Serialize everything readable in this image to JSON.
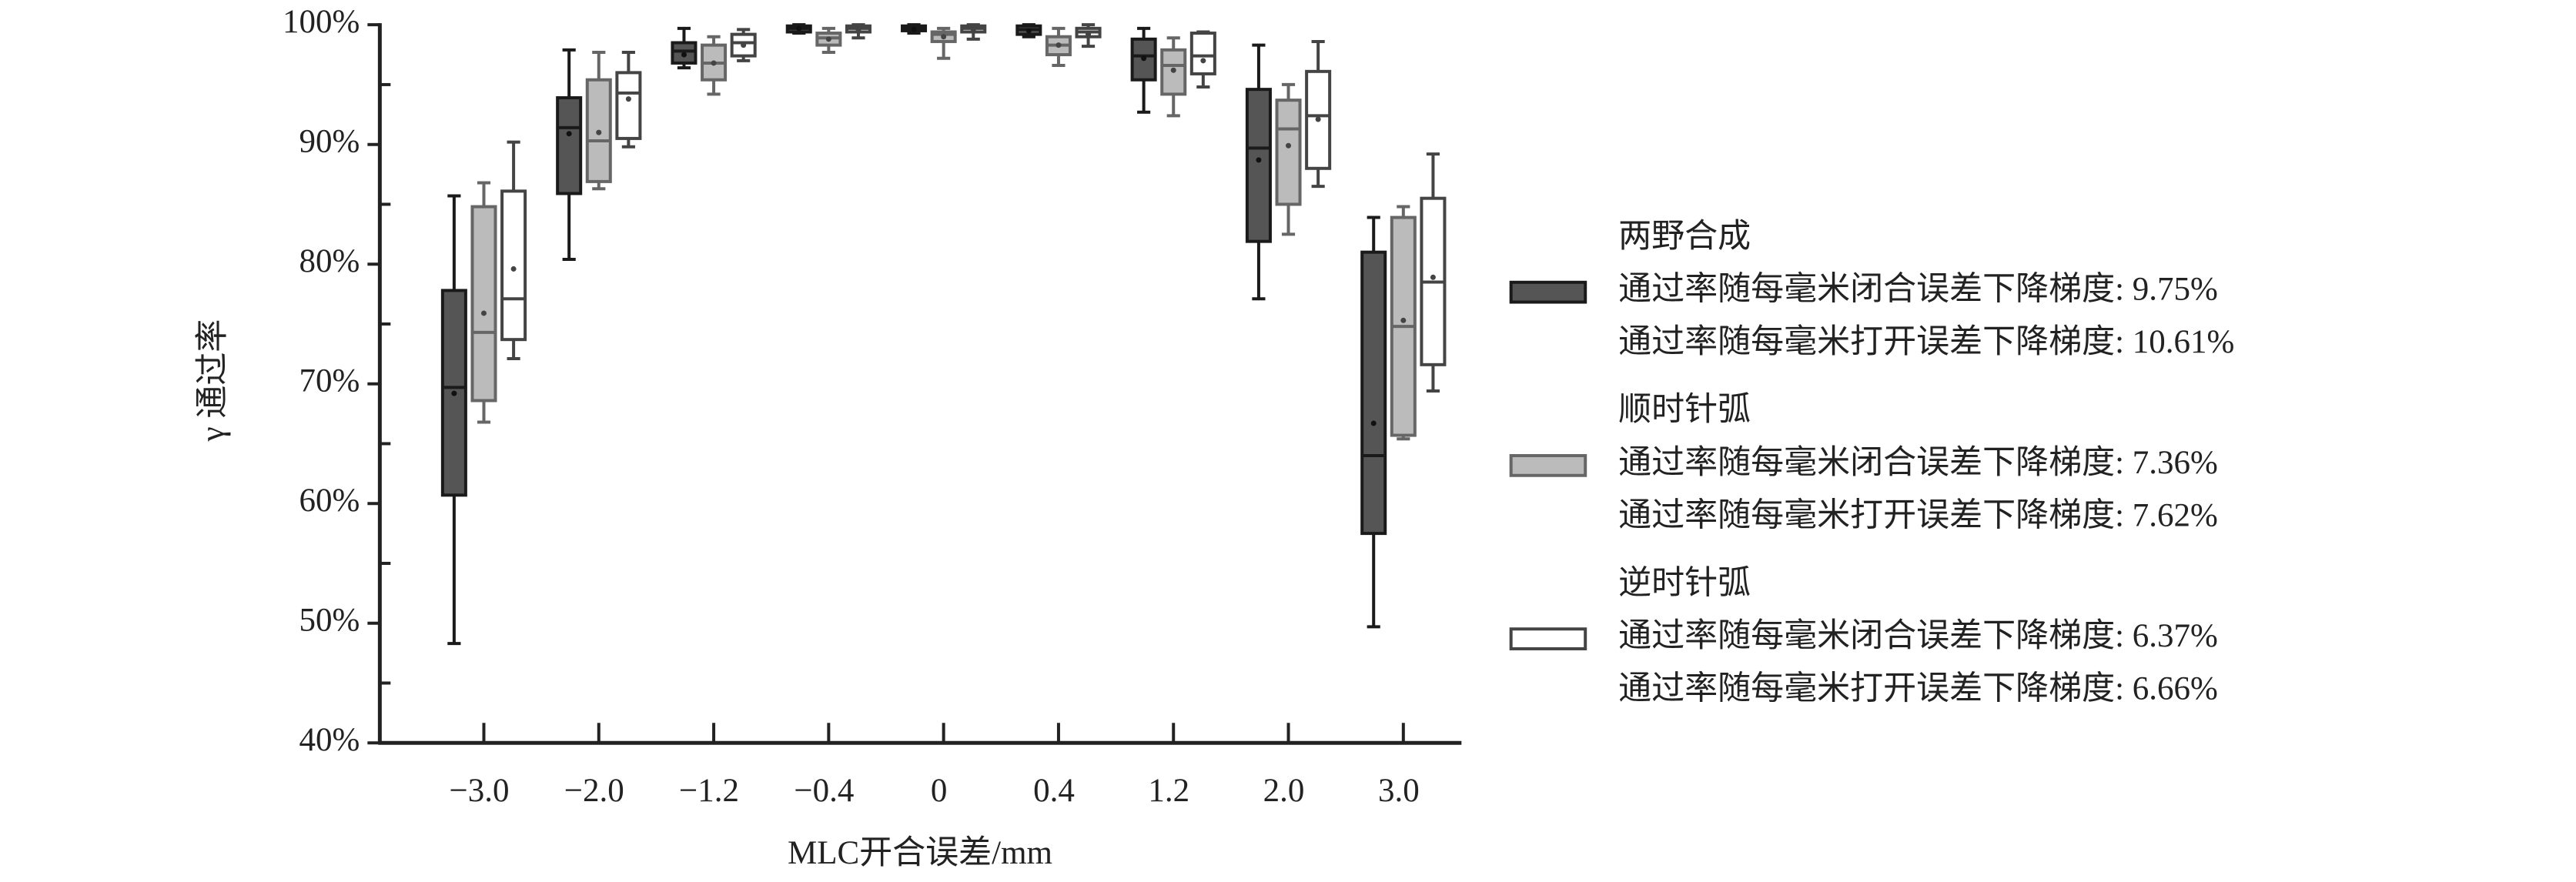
{
  "chart_data": {
    "type": "box",
    "xlabel": "MLC开合误差/mm",
    "ylabel": "γ 通过率",
    "categories": [
      "−3.0",
      "−2.0",
      "−1.2",
      "−0.4",
      "0",
      "0.4",
      "1.2",
      "2.0",
      "3.0"
    ],
    "ylim": [
      40,
      100
    ],
    "yticks": [
      {
        "value": 40,
        "label": "40%"
      },
      {
        "value": 50,
        "label": "50%"
      },
      {
        "value": 60,
        "label": "60%"
      },
      {
        "value": 70,
        "label": "70%"
      },
      {
        "value": 80,
        "label": "80%"
      },
      {
        "value": 90,
        "label": "90%"
      },
      {
        "value": 100,
        "label": "100%"
      }
    ],
    "yminor_ticks": [
      45,
      55,
      65,
      75,
      85,
      95
    ],
    "series": [
      {
        "name": "两野合成",
        "color": "#555555",
        "edge_color": "#1a1a1a",
        "notes": [
          "通过率随每毫米闭合误差下降梯度: 9.75%",
          "通过率随每毫米打开误差下降梯度: 10.61%"
        ],
        "min": [
          48.3,
          80.4,
          96.4,
          99.3,
          99.3,
          99.0,
          92.7,
          77.1,
          49.7
        ],
        "q1": [
          60.7,
          85.9,
          96.8,
          99.4,
          99.5,
          99.2,
          95.4,
          81.9,
          57.5
        ],
        "median": [
          69.7,
          91.4,
          97.8,
          99.7,
          99.7,
          99.6,
          97.4,
          89.7,
          64.0
        ],
        "q3": [
          77.8,
          93.9,
          98.5,
          99.9,
          99.9,
          99.9,
          98.8,
          94.6,
          81.0
        ],
        "max": [
          85.7,
          97.9,
          99.7,
          100,
          100,
          100,
          99.7,
          98.3,
          83.9
        ],
        "mean": [
          69.2,
          90.9,
          97.5,
          99.7,
          99.6,
          99.5,
          97.2,
          88.7,
          66.7
        ]
      },
      {
        "name": "顺时针弧",
        "color": "#bbbbbb",
        "edge_color": "#666666",
        "notes": [
          "通过率随每毫米闭合误差下降梯度: 7.36%",
          "通过率随每毫米打开误差下降梯度: 7.62%"
        ],
        "min": [
          66.8,
          86.3,
          94.2,
          97.7,
          97.2,
          96.6,
          92.4,
          82.5,
          65.4
        ],
        "q1": [
          68.6,
          86.9,
          95.4,
          98.3,
          98.6,
          97.5,
          94.2,
          85.0,
          65.7
        ],
        "median": [
          74.3,
          90.3,
          96.8,
          98.9,
          99.2,
          98.3,
          96.6,
          91.3,
          74.8
        ],
        "q3": [
          84.8,
          95.4,
          98.3,
          99.3,
          99.4,
          99.0,
          97.9,
          93.7,
          83.9
        ],
        "max": [
          86.8,
          97.7,
          99.0,
          99.7,
          99.7,
          99.7,
          98.9,
          95.0,
          84.8
        ],
        "mean": [
          75.9,
          91.0,
          96.8,
          98.8,
          99.0,
          98.3,
          96.2,
          89.9,
          75.3
        ]
      },
      {
        "name": "逆时针弧",
        "color": "#ffffff",
        "edge_color": "#444444",
        "notes": [
          "通过率随每毫米闭合误差下降梯度: 6.37%",
          "通过率随每毫米打开误差下降梯度: 6.66%"
        ],
        "min": [
          72.1,
          89.8,
          97.0,
          98.9,
          98.8,
          98.2,
          94.8,
          86.5,
          69.4
        ],
        "q1": [
          73.7,
          90.5,
          97.4,
          99.4,
          99.4,
          99.0,
          95.9,
          88.0,
          71.6
        ],
        "median": [
          77.1,
          94.3,
          98.5,
          99.7,
          99.7,
          99.4,
          97.4,
          92.4,
          78.5
        ],
        "q3": [
          86.1,
          96.0,
          99.2,
          99.9,
          99.9,
          99.7,
          99.3,
          96.1,
          85.5
        ],
        "max": [
          90.2,
          97.7,
          99.6,
          100,
          100,
          100,
          99.4,
          98.6,
          89.2
        ],
        "mean": [
          79.6,
          93.8,
          98.3,
          99.6,
          99.5,
          99.2,
          97.0,
          92.1,
          78.9
        ]
      }
    ]
  }
}
